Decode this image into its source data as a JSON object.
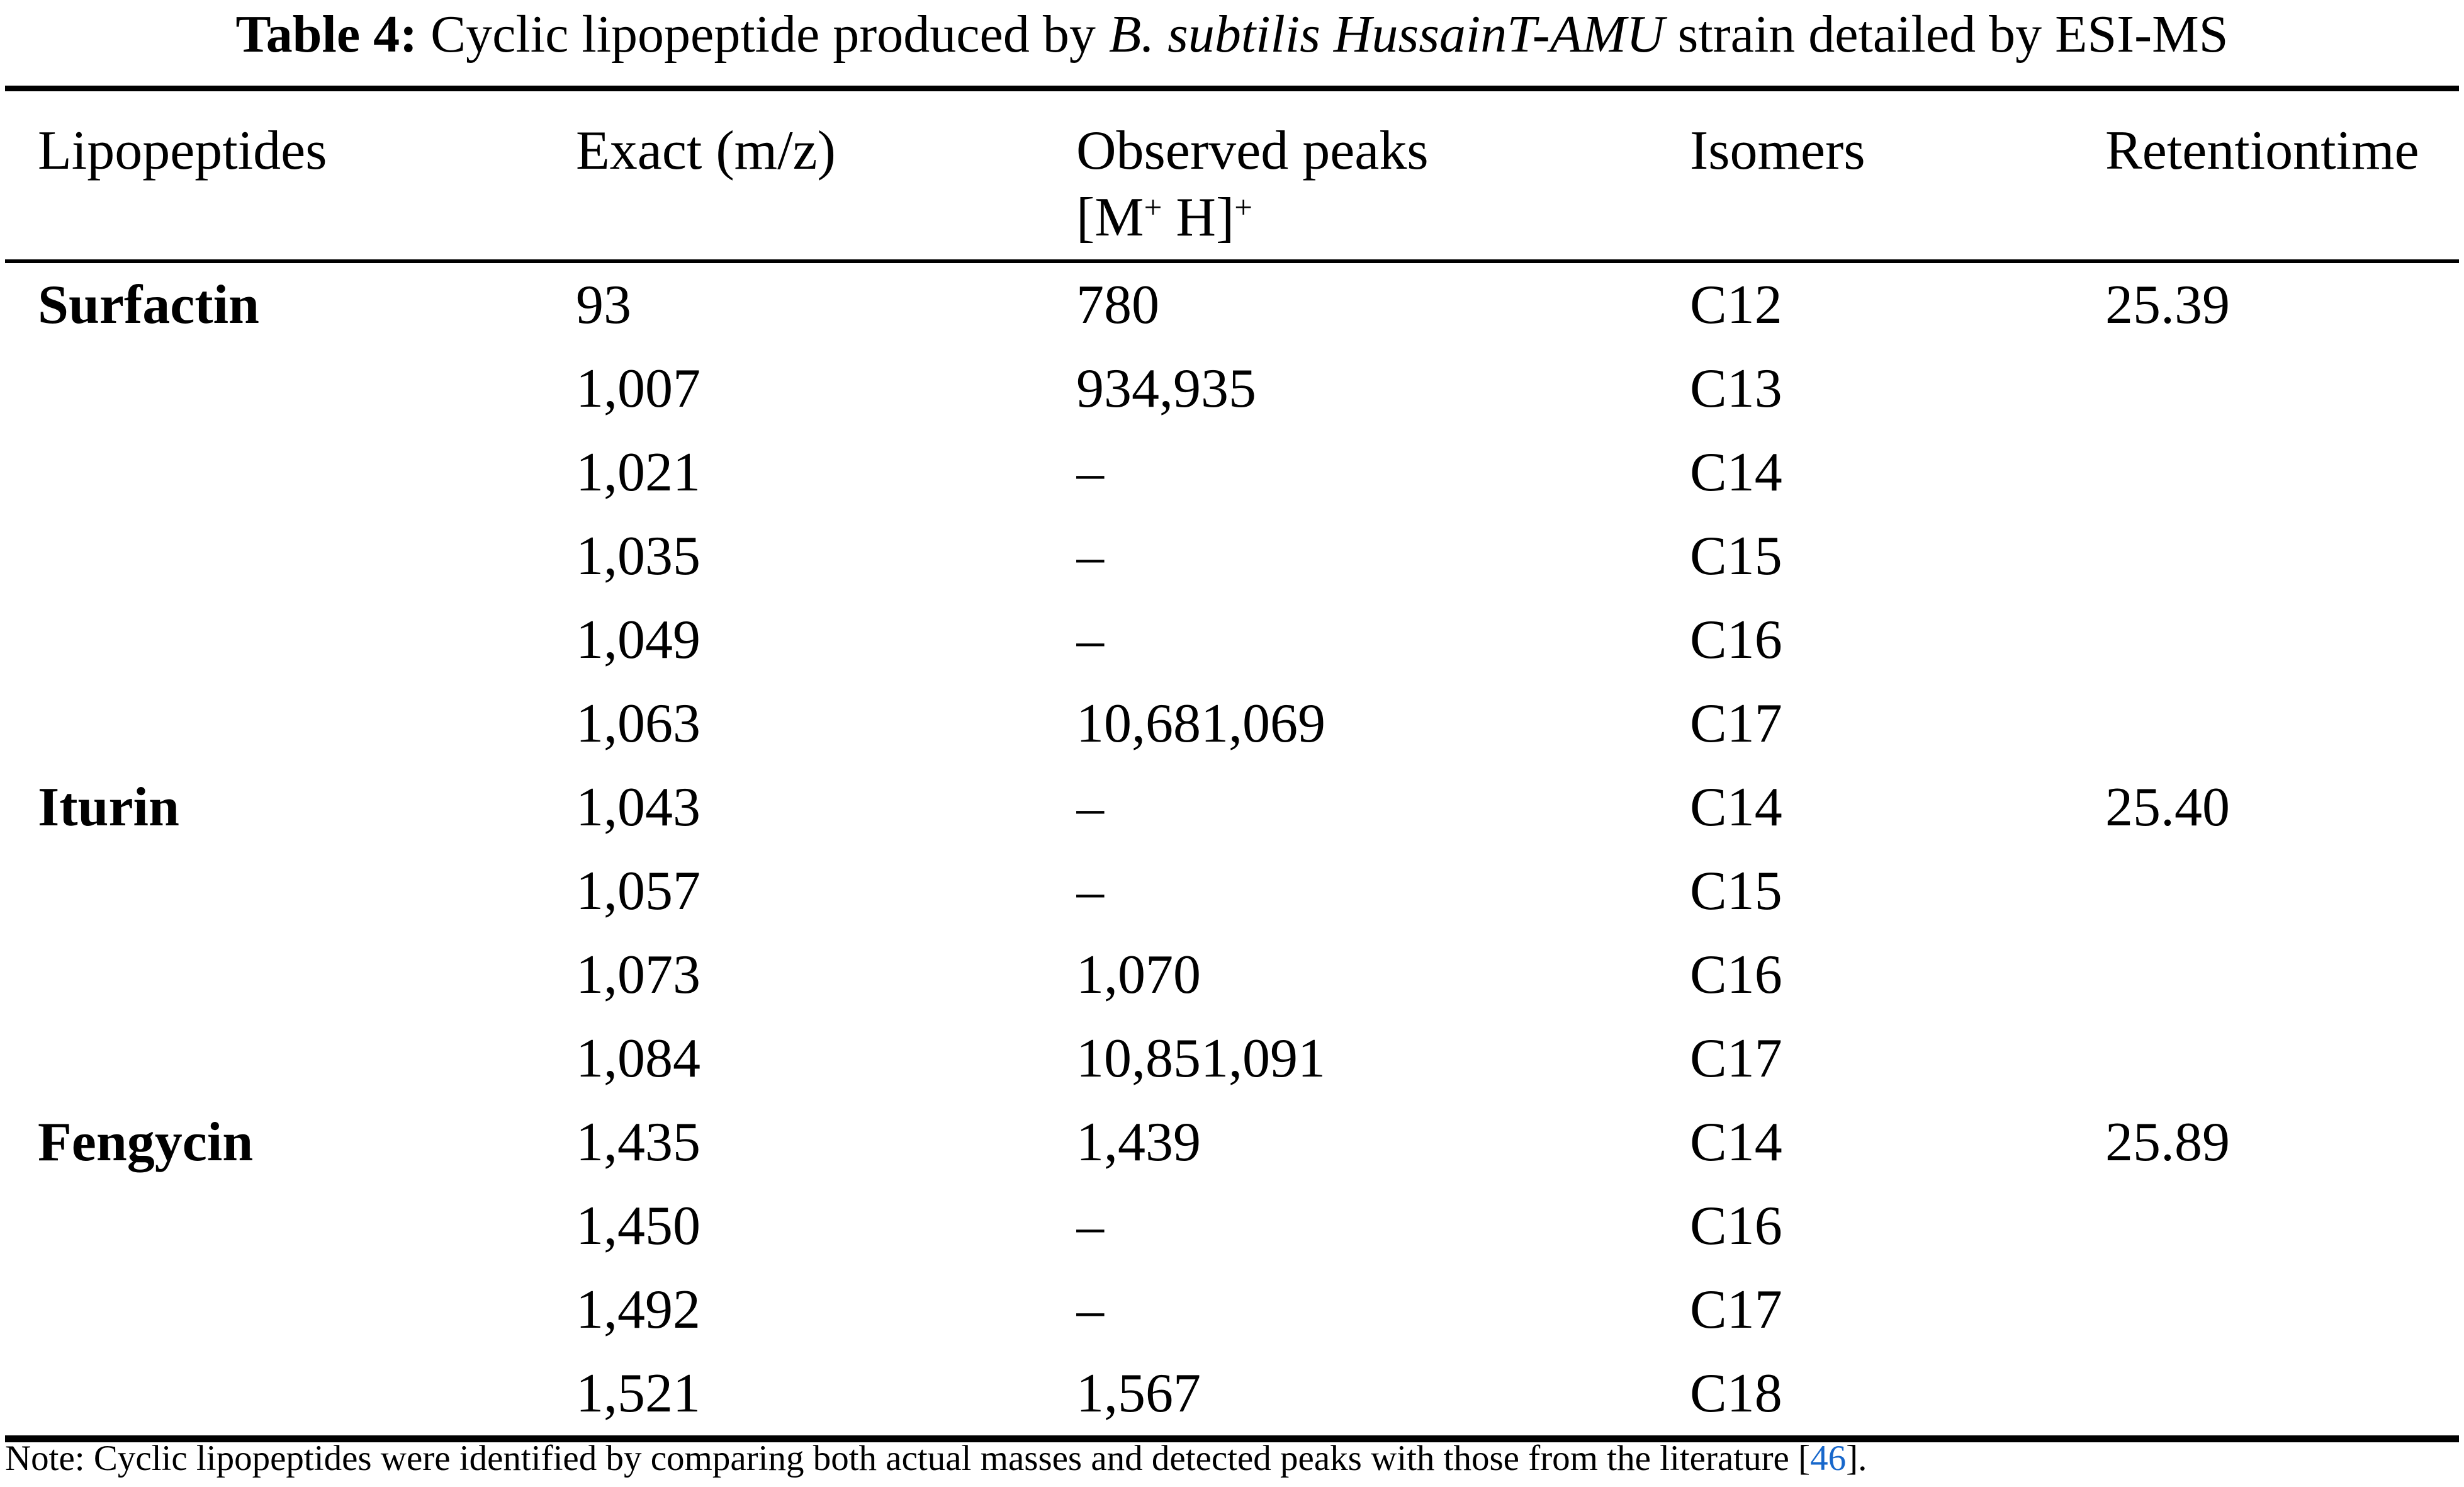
{
  "caption": {
    "label_bold": "Table 4:",
    "text_pre_italic": " Cyclic lipopeptide produced by ",
    "strain_italic": "B. subtilis HussainT-AMU",
    "text_post_italic": " strain detailed by ESI-MS"
  },
  "table": {
    "headers": {
      "lipopeptides": "Lipopeptides",
      "exact_mz": "Exact (m/z)",
      "observed_line1": "Observed peaks",
      "observed_line2_open": "[M",
      "observed_line2_sup1": "+",
      "observed_line2_mid": " H]",
      "observed_line2_sup2": "+",
      "isomers": "Isomers",
      "retention_time": "Retentiontime"
    },
    "rows": [
      {
        "name": "Surfactin",
        "exact": "93",
        "observed": "780",
        "isomer": "C12",
        "retention": "25.39"
      },
      {
        "name": "",
        "exact": "1,007",
        "observed": "934,935",
        "isomer": "C13",
        "retention": ""
      },
      {
        "name": "",
        "exact": "1,021",
        "observed": "–",
        "isomer": "C14",
        "retention": ""
      },
      {
        "name": "",
        "exact": "1,035",
        "observed": "–",
        "isomer": "C15",
        "retention": ""
      },
      {
        "name": "",
        "exact": "1,049",
        "observed": "–",
        "isomer": "C16",
        "retention": ""
      },
      {
        "name": "",
        "exact": "1,063",
        "observed": "10,681,069",
        "isomer": "C17",
        "retention": ""
      },
      {
        "name": "Iturin",
        "exact": "1,043",
        "observed": "–",
        "isomer": "C14",
        "retention": "25.40"
      },
      {
        "name": "",
        "exact": "1,057",
        "observed": "–",
        "isomer": "C15",
        "retention": ""
      },
      {
        "name": "",
        "exact": "1,073",
        "observed": "1,070",
        "isomer": "C16",
        "retention": ""
      },
      {
        "name": "",
        "exact": "1,084",
        "observed": "10,851,091",
        "isomer": "C17",
        "retention": ""
      },
      {
        "name": "Fengycin",
        "exact": "1,435",
        "observed": "1,439",
        "isomer": "C14",
        "retention": "25.89"
      },
      {
        "name": "",
        "exact": "1,450",
        "observed": "–",
        "isomer": "C16",
        "retention": ""
      },
      {
        "name": "",
        "exact": "1,492",
        "observed": "–",
        "isomer": "C17",
        "retention": ""
      },
      {
        "name": "",
        "exact": "1,521",
        "observed": "1,567",
        "isomer": "C18",
        "retention": ""
      }
    ]
  },
  "note": {
    "prefix": "Note: Cyclic lipopeptides were identified by comparing both actual masses and detected peaks with those from the literature [",
    "citation": "46",
    "suffix": "]."
  },
  "colors": {
    "text": "#000000",
    "background": "#ffffff",
    "citation_link": "#1767cb"
  }
}
